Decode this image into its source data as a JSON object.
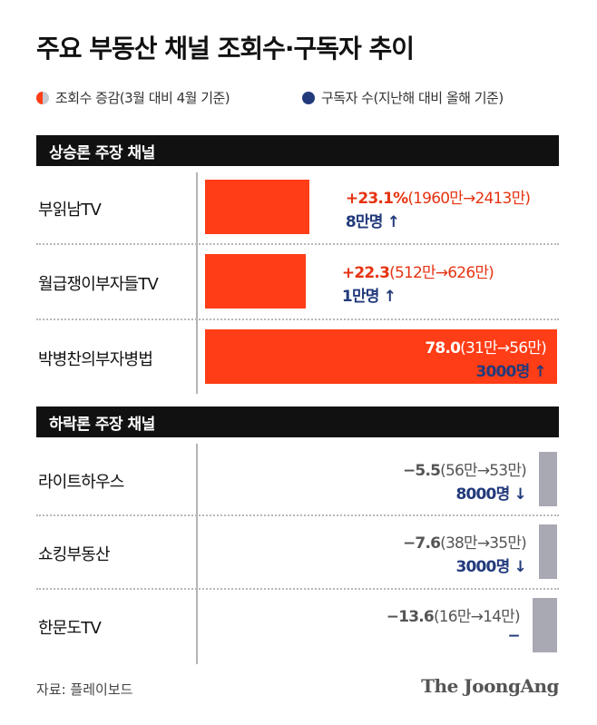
{
  "title": "주요 부동산 채널 조회수·구독자 추이",
  "legend": {
    "views": "조회수 증감(3월 대비 4월 기준)",
    "subscribers": "구독자 수(지난해 대비 올해 기준)"
  },
  "colors": {
    "up": "#ff3d16",
    "down": "#a9a9b4",
    "subscribers": "#223a7c",
    "bar_bg": "#111111"
  },
  "sections": [
    {
      "header": "상승론 주장 채널",
      "rows": [
        {
          "label": "부읽남TV",
          "change": 23.1,
          "change_text": "+23.1%",
          "detail": "(1960만→2413만)",
          "subs": "8만명 ↑"
        },
        {
          "label": "월급쟁이부자들TV",
          "change": 22.3,
          "change_text": "+22.3",
          "detail": "(512만→626만)",
          "subs": "1만명 ↑"
        },
        {
          "label": "박병찬의부자병법",
          "change": 78.0,
          "change_text": "78.0",
          "detail": "(31만→56만)",
          "subs": "3000명 ↑"
        }
      ]
    },
    {
      "header": "하락론 주장 채널",
      "rows": [
        {
          "label": "라이트하우스",
          "change": -5.5,
          "change_text": "−5.5",
          "detail": "(56만→53만)",
          "subs": "8000명 ↓"
        },
        {
          "label": "쇼킹부동산",
          "change": -7.6,
          "change_text": "−7.6",
          "detail": "(38만→35만)",
          "subs": "3000명 ↓"
        },
        {
          "label": "한문도TV",
          "change": -13.6,
          "change_text": "−13.6",
          "detail": "(16만→14만)",
          "subs": "−"
        }
      ]
    }
  ],
  "source": "자료: 플레이보드",
  "brand": "The JoongAng",
  "chart_data": {
    "type": "bar",
    "title": "주요 부동산 채널 조회수·구독자 추이",
    "categories": [
      "부읽남TV",
      "월급쟁이부자들TV",
      "박병찬의부자병법",
      "라이트하우스",
      "쇼킹부동산",
      "한문도TV"
    ],
    "series": [
      {
        "name": "조회수 증감(3월 대비 4월 기준)",
        "values": [
          23.1,
          22.3,
          78.0,
          -5.5,
          -7.6,
          -13.6
        ]
      }
    ],
    "views_before": [
      "1960만",
      "512만",
      "31만",
      "56만",
      "38만",
      "16만"
    ],
    "views_after": [
      "2413만",
      "626만",
      "56만",
      "53만",
      "35만",
      "14만"
    ],
    "subscriber_change": [
      "8만명 ↑",
      "1만명 ↑",
      "3000명 ↑",
      "8000명 ↓",
      "3000명 ↓",
      "−"
    ],
    "groups": [
      "상승론 주장 채널",
      "상승론 주장 채널",
      "상승론 주장 채널",
      "하락론 주장 채널",
      "하락론 주장 채널",
      "하락론 주장 채널"
    ]
  }
}
